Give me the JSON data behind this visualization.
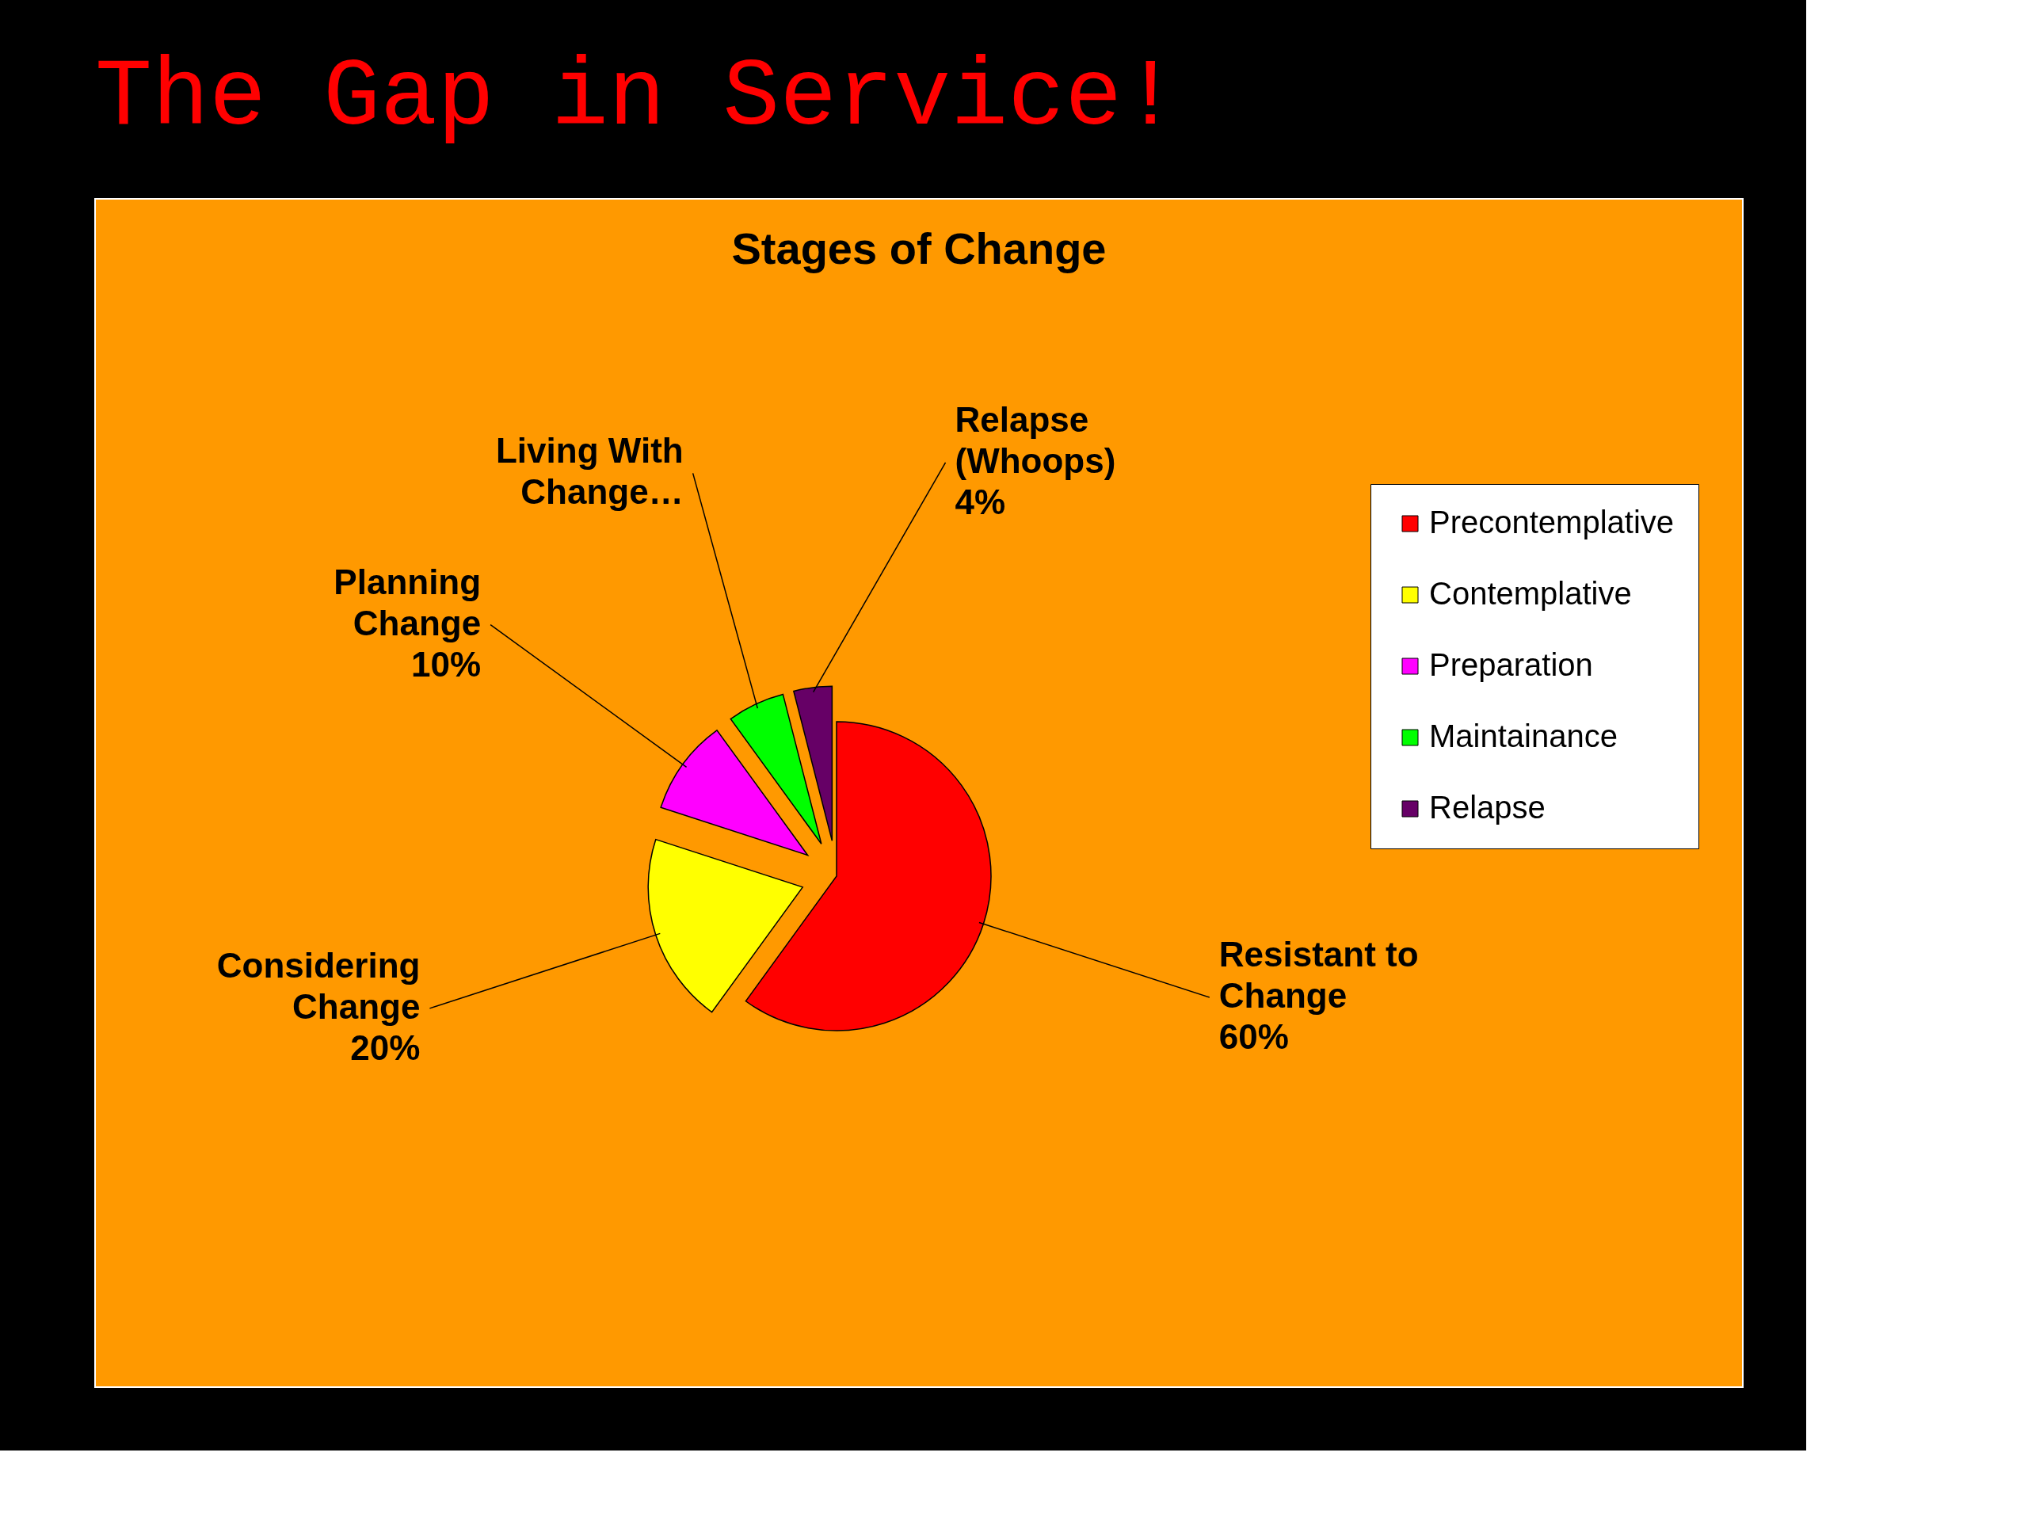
{
  "chart_data": {
    "type": "pie",
    "title": "The Gap in Service!",
    "subtitle": "Stages of Change",
    "categories": [
      "Precontemplative",
      "Contemplative",
      "Preparation",
      "Maintainance",
      "Relapse"
    ],
    "values": [
      60,
      20,
      10,
      6,
      4
    ],
    "colors": [
      "#ff0000",
      "#ffff00",
      "#ff00ff",
      "#00ff00",
      "#660066"
    ],
    "value_labels": [
      "Resistant to\nChange\n60%",
      "Considering\nChange\n20%",
      "Planning\nChange\n10%",
      "Living With\nChange…",
      "Relapse\n(Whoops)\n4%"
    ],
    "legend": "right"
  }
}
